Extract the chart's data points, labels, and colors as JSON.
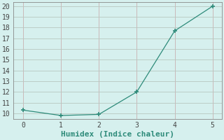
{
  "x": [
    0,
    1,
    2,
    3,
    4,
    5
  ],
  "y": [
    10.3,
    9.8,
    9.9,
    12.0,
    17.7,
    20.0
  ],
  "line_color": "#2e8b7a",
  "marker_color": "#2e8b7a",
  "bg_color": "#d6f0ee",
  "grid_color_h": "#c8b8b8",
  "grid_color_v": "#c8b8b8",
  "xlabel": "Humidex (Indice chaleur)",
  "xlim": [
    -0.25,
    5.25
  ],
  "ylim": [
    9.5,
    20.4
  ],
  "yticks": [
    10,
    11,
    12,
    13,
    14,
    15,
    16,
    17,
    18,
    19,
    20
  ],
  "xticks": [
    0,
    1,
    2,
    3,
    4,
    5
  ],
  "xlabel_fontsize": 8,
  "tick_fontsize": 7,
  "font_family": "monospace"
}
